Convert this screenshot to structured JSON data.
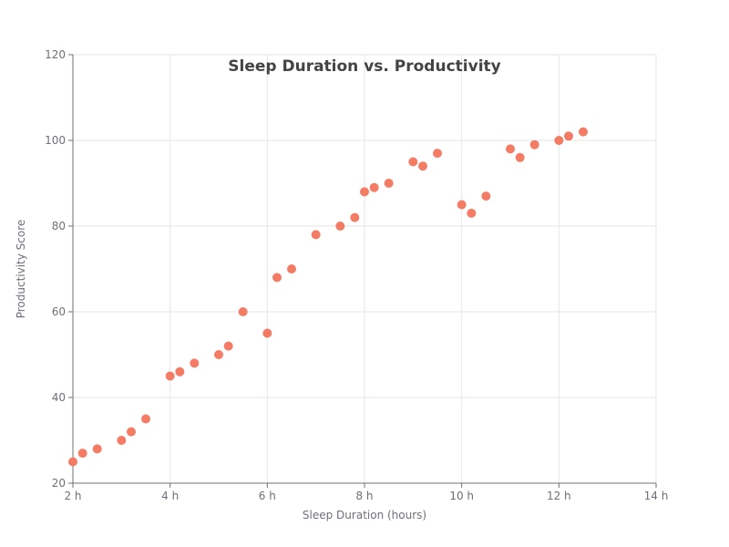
{
  "chart_data": {
    "type": "scatter",
    "title": "Sleep Duration vs. Productivity",
    "xlabel": "Sleep Duration (hours)",
    "ylabel": "Productivity Score",
    "xlim": [
      2,
      14
    ],
    "ylim": [
      20,
      120
    ],
    "x_ticks": [
      2,
      4,
      6,
      8,
      10,
      12,
      14
    ],
    "x_tick_labels": [
      "2 h",
      "4 h",
      "6 h",
      "8 h",
      "10 h",
      "12 h",
      "14 h"
    ],
    "y_ticks": [
      20,
      40,
      60,
      80,
      100,
      120
    ],
    "y_tick_labels": [
      "20",
      "40",
      "60",
      "80",
      "100",
      "120"
    ],
    "grid": true,
    "point_color": "#f47c65",
    "points": [
      {
        "x": 2.0,
        "y": 25
      },
      {
        "x": 2.2,
        "y": 27
      },
      {
        "x": 2.5,
        "y": 28
      },
      {
        "x": 3.0,
        "y": 30
      },
      {
        "x": 3.2,
        "y": 32
      },
      {
        "x": 3.5,
        "y": 35
      },
      {
        "x": 4.0,
        "y": 45
      },
      {
        "x": 4.2,
        "y": 46
      },
      {
        "x": 4.5,
        "y": 48
      },
      {
        "x": 5.0,
        "y": 50
      },
      {
        "x": 5.2,
        "y": 52
      },
      {
        "x": 5.5,
        "y": 60
      },
      {
        "x": 6.0,
        "y": 55
      },
      {
        "x": 6.2,
        "y": 68
      },
      {
        "x": 6.5,
        "y": 70
      },
      {
        "x": 7.0,
        "y": 78
      },
      {
        "x": 7.5,
        "y": 80
      },
      {
        "x": 7.8,
        "y": 82
      },
      {
        "x": 8.0,
        "y": 88
      },
      {
        "x": 8.2,
        "y": 89
      },
      {
        "x": 8.5,
        "y": 90
      },
      {
        "x": 9.0,
        "y": 95
      },
      {
        "x": 9.2,
        "y": 94
      },
      {
        "x": 9.5,
        "y": 97
      },
      {
        "x": 10.0,
        "y": 85
      },
      {
        "x": 10.2,
        "y": 83
      },
      {
        "x": 10.5,
        "y": 87
      },
      {
        "x": 11.0,
        "y": 98
      },
      {
        "x": 11.2,
        "y": 96
      },
      {
        "x": 11.5,
        "y": 99
      },
      {
        "x": 12.0,
        "y": 100
      },
      {
        "x": 12.2,
        "y": 101
      },
      {
        "x": 12.5,
        "y": 102
      }
    ]
  }
}
